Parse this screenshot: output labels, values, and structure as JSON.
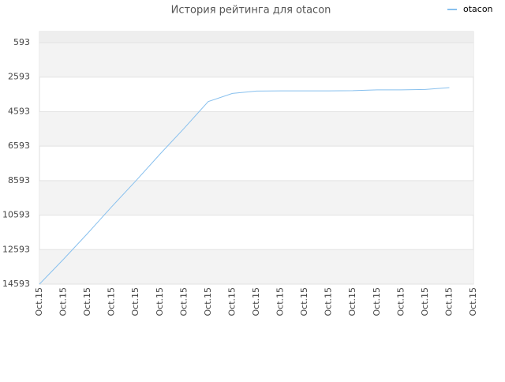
{
  "chart_data": {
    "type": "line",
    "title": "История рейтинга для otacon",
    "categories": [
      "Oct.15",
      "Oct.15",
      "Oct.15",
      "Oct.15",
      "Oct.15",
      "Oct.15",
      "Oct.15",
      "Oct.15",
      "Oct.15",
      "Oct.15",
      "Oct.15",
      "Oct.15",
      "Oct.15",
      "Oct.15",
      "Oct.15",
      "Oct.15",
      "Oct.15",
      "Oct.15",
      "Oct.15"
    ],
    "series": [
      {
        "name": "otacon",
        "color": "#88c0ee",
        "values": [
          14593,
          13146,
          11648,
          10101,
          8603,
          7056,
          5559,
          4011,
          3540,
          3400,
          3390,
          3390,
          3390,
          3380,
          3330,
          3330,
          3310,
          3200,
          null
        ]
      }
    ],
    "ylim": [
      14593,
      -47
    ],
    "yticks": [
      593,
      2593,
      4593,
      6593,
      8593,
      10593,
      12593,
      14593
    ],
    "grid": true,
    "legend": "top-right"
  }
}
